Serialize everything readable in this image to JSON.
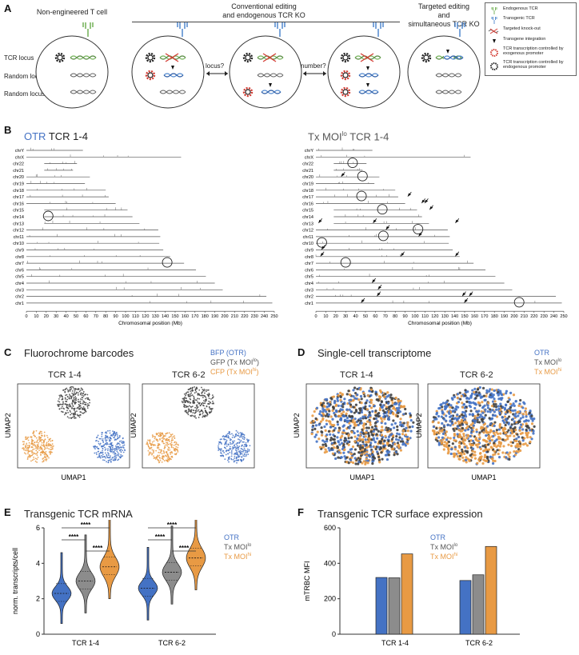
{
  "panelA": {
    "label": "A",
    "cell1_title": "Non-engineered T cell",
    "group_title": "Conventional editing\nand endogenous TCR KO",
    "cell5_title": "Targeted editing\nand\nsimultaneous TCR KO",
    "locus_labels": [
      "TCR locus",
      "Random locus",
      "Random locus"
    ],
    "arrow1_label": "locus?",
    "arrow2_label": "number?",
    "legend": [
      "Endogenous TCR",
      "Transgenic TCR",
      "Targeted knock-out",
      "Transgene integration",
      "TCR transcription controlled by exogenous promoter",
      "TCR transcription controlled by endogenous promoter"
    ],
    "colors": {
      "endogenous": "#7bb661",
      "transgenic": "#5b8fd1",
      "ko": "#d33b32"
    }
  },
  "panelB": {
    "label": "B",
    "left_title_a": "OTR",
    "left_title_b": " TCR 1-4",
    "right_title_a": "Tx MOI",
    "right_title_sup": "lo",
    "right_title_b": " TCR 1-4",
    "xlabel": "Chromosomal position (Mb)",
    "chromosomes": [
      "chrY",
      "chrX",
      "chr22",
      "chr21",
      "chr20",
      "chr19",
      "chr18",
      "chr17",
      "chr16",
      "chr15",
      "chr14",
      "chr13",
      "chr12",
      "chr11",
      "chr10",
      "chr9",
      "chr8",
      "chr7",
      "chr6",
      "chr5",
      "chr4",
      "chr3",
      "chr2",
      "chr1"
    ],
    "ticks": [
      "0",
      "10",
      "20",
      "30",
      "40",
      "50",
      "60",
      "70",
      "80",
      "90",
      "100",
      "110",
      "120",
      "130",
      "140",
      "150",
      "160",
      "170",
      "180",
      "190",
      "200",
      "210",
      "220",
      "230",
      "240",
      "250"
    ]
  },
  "chart_data": [
    {
      "type": "scatter",
      "title": "Fluorochrome barcodes",
      "panel": "C",
      "subplots": [
        "TCR 1-4",
        "TCR 6-2"
      ],
      "xlabel": "UMAP1",
      "ylabel": "UMAP2",
      "legend": [
        "BFP (OTR)",
        "GFP (Tx MOIlo)",
        "CFP (Tx MOIhi)"
      ]
    },
    {
      "type": "scatter",
      "title": "Single-cell transcriptome",
      "panel": "D",
      "subplots": [
        "TCR 1-4",
        "TCR 6-2"
      ],
      "xlabel": "UMAP1",
      "ylabel": "UMAP2",
      "legend": [
        "OTR",
        "Tx MOIlo",
        "Tx MOIhi"
      ]
    },
    {
      "type": "violin",
      "title": "Transgenic TCR mRNA",
      "panel": "E",
      "categories": [
        "TCR 1-4",
        "TCR 6-2"
      ],
      "ylabel": "norm. transcripts/cell",
      "ylim": [
        0,
        6
      ],
      "yticks": [
        "0",
        "2",
        "4",
        "6"
      ],
      "significance": "****",
      "series": [
        {
          "name": "OTR",
          "medians": [
            2.3,
            2.6
          ]
        },
        {
          "name": "Tx MOIlo",
          "medians": [
            3.0,
            3.5
          ]
        },
        {
          "name": "Tx MOIhi",
          "medians": [
            3.8,
            4.3
          ]
        }
      ]
    },
    {
      "type": "bar",
      "title": "Transgenic TCR surface expression",
      "panel": "F",
      "categories": [
        "TCR 1-4",
        "TCR 6-2"
      ],
      "ylabel": "mTRBC MFI",
      "ylim": [
        0,
        600
      ],
      "yticks": [
        "0",
        "200",
        "400",
        "600"
      ],
      "series": [
        {
          "name": "OTR",
          "values": [
            320,
            303
          ]
        },
        {
          "name": "Tx MOIlo",
          "values": [
            318,
            335
          ]
        },
        {
          "name": "Tx MOIhi",
          "values": [
            453,
            495
          ]
        }
      ]
    }
  ],
  "panelC": {
    "label": "C"
  },
  "panelD": {
    "label": "D"
  },
  "panelE": {
    "label": "E"
  },
  "panelF": {
    "label": "F"
  },
  "legend_text": {
    "otr": "OTR",
    "txmoi": "Tx MOI",
    "lo": "lo",
    "hi": "hi",
    "bfp": "BFP (OTR)",
    "gfp": "GFP (Tx MOI",
    "cfp": "CFP (Tx MOI",
    "close_paren": ")"
  },
  "colors": {
    "blue": "#4472c4",
    "gray": "#8c8c8c",
    "orange": "#e89a44",
    "dark": "#404040"
  }
}
